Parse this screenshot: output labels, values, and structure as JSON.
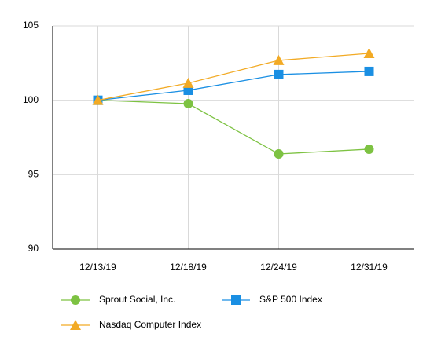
{
  "chart_data": {
    "type": "line",
    "categories": [
      "12/13/19",
      "12/18/19",
      "12/24/19",
      "12/31/19"
    ],
    "series": [
      {
        "name": "Sprout Social, Inc.",
        "color": "#7dc242",
        "marker": "circle",
        "values": [
          100,
          99.77,
          96.39,
          96.71
        ]
      },
      {
        "name": "S&P 500 Index",
        "color": "#1a8fe3",
        "marker": "square",
        "values": [
          100,
          100.67,
          101.73,
          101.94
        ]
      },
      {
        "name": "Nasdaq Computer Index",
        "color": "#f2aa24",
        "marker": "triangle",
        "values": [
          100,
          101.15,
          102.68,
          103.15
        ]
      }
    ],
    "ylim": [
      90,
      105
    ],
    "yticks": [
      90,
      95,
      100,
      105
    ],
    "grid": true
  }
}
